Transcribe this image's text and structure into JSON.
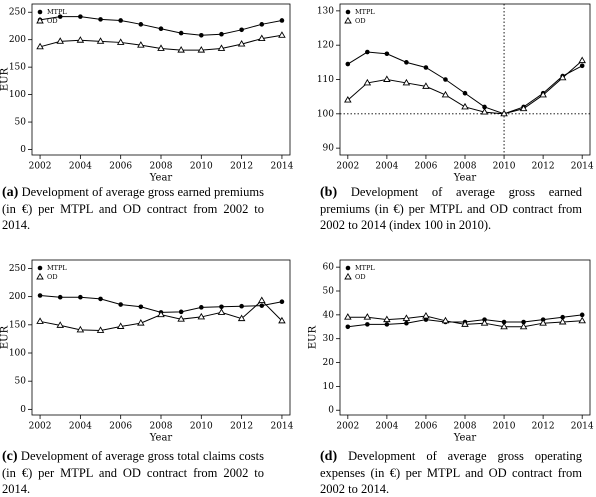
{
  "chart_data": [
    {
      "type": "line",
      "caption_label": "(a)",
      "caption": "Development of average gross earned premiums (in €) per MTPL and OD contract from 2002 to 2014.",
      "xlabel": "Year",
      "ylabel": "EUR",
      "x": [
        2002,
        2003,
        2004,
        2005,
        2006,
        2007,
        2008,
        2009,
        2010,
        2011,
        2012,
        2013,
        2014
      ],
      "xlim": [
        2001.6,
        2014.4
      ],
      "xticks": [
        2002,
        2004,
        2006,
        2008,
        2010,
        2012,
        2014
      ],
      "ylim": [
        -10,
        265
      ],
      "yticks": [
        0,
        50,
        100,
        150,
        200,
        250
      ],
      "legend": "upper left",
      "series": [
        {
          "name": "MTPL",
          "color": "#000000",
          "marker": "circle",
          "values": [
            236,
            242,
            242,
            237,
            235,
            228,
            220,
            212,
            208,
            210,
            218,
            228,
            235
          ]
        },
        {
          "name": "OD",
          "color": "#000000",
          "marker": "triangle",
          "values": [
            187,
            197,
            199,
            197,
            195,
            190,
            184,
            181,
            181,
            184,
            192,
            202,
            208
          ]
        }
      ]
    },
    {
      "type": "line",
      "caption_label": "(b)",
      "caption": "Development of average gross earned premiums (in €) per MTPL and OD contract from 2002 to 2014 (index 100 in 2010).",
      "xlabel": "Year",
      "x": [
        2002,
        2003,
        2004,
        2005,
        2006,
        2007,
        2008,
        2009,
        2010,
        2011,
        2012,
        2013,
        2014
      ],
      "xlim": [
        2001.6,
        2014.4
      ],
      "xticks": [
        2002,
        2004,
        2006,
        2008,
        2010,
        2012,
        2014
      ],
      "ylim": [
        88,
        132
      ],
      "yticks": [
        90,
        100,
        110,
        120,
        130
      ],
      "hline": 100,
      "vline": 2010,
      "legend": "upper left",
      "series": [
        {
          "name": "MTPL",
          "color": "#000000",
          "marker": "circle",
          "values": [
            114.5,
            118,
            117.5,
            115,
            113.5,
            110,
            106,
            102,
            100,
            102,
            106,
            111,
            114
          ]
        },
        {
          "name": "OD",
          "color": "#000000",
          "marker": "triangle",
          "values": [
            104,
            109,
            110,
            109,
            108,
            105.5,
            102,
            100.5,
            100,
            101.5,
            105.5,
            110.5,
            115.5
          ]
        }
      ]
    },
    {
      "type": "line",
      "caption_label": "(c)",
      "caption": "Development of average gross total claims costs (in €) per MTPL and OD contract from 2002 to 2014.",
      "xlabel": "Year",
      "ylabel": "EUR",
      "x": [
        2002,
        2003,
        2004,
        2005,
        2006,
        2007,
        2008,
        2009,
        2010,
        2011,
        2012,
        2013,
        2014
      ],
      "xlim": [
        2001.6,
        2014.4
      ],
      "xticks": [
        2002,
        2004,
        2006,
        2008,
        2010,
        2012,
        2014
      ],
      "ylim": [
        -10,
        265
      ],
      "yticks": [
        0,
        50,
        100,
        150,
        200,
        250
      ],
      "legend": "upper left",
      "series": [
        {
          "name": "MTPL",
          "color": "#000000",
          "marker": "circle",
          "values": [
            202,
            199,
            199,
            196,
            186,
            182,
            172,
            173,
            181,
            182,
            183,
            184,
            191
          ]
        },
        {
          "name": "OD",
          "color": "#000000",
          "marker": "triangle",
          "values": [
            156,
            149,
            141,
            140,
            147,
            153,
            168,
            160,
            164,
            172,
            161,
            193,
            157
          ]
        }
      ]
    },
    {
      "type": "line",
      "caption_label": "(d)",
      "caption": "Development of average gross operating expenses (in €) per MTPL and OD contract from 2002 to 2014.",
      "xlabel": "Year",
      "ylabel": "EUR",
      "x": [
        2002,
        2003,
        2004,
        2005,
        2006,
        2007,
        2008,
        2009,
        2010,
        2011,
        2012,
        2013,
        2014
      ],
      "xlim": [
        2001.6,
        2014.4
      ],
      "xticks": [
        2002,
        2004,
        2006,
        2008,
        2010,
        2012,
        2014
      ],
      "ylim": [
        -2,
        63
      ],
      "yticks": [
        0,
        10,
        20,
        30,
        40,
        50,
        60
      ],
      "legend": "upper left",
      "series": [
        {
          "name": "MTPL",
          "color": "#000000",
          "marker": "circle",
          "values": [
            35,
            36,
            36,
            36.5,
            38,
            37,
            37,
            38,
            37,
            37,
            38,
            39,
            40
          ]
        },
        {
          "name": "OD",
          "color": "#000000",
          "marker": "triangle",
          "values": [
            39,
            39,
            38,
            38.5,
            39.5,
            37.5,
            36,
            36.5,
            35,
            35,
            36.5,
            37,
            37.5
          ]
        }
      ]
    }
  ]
}
